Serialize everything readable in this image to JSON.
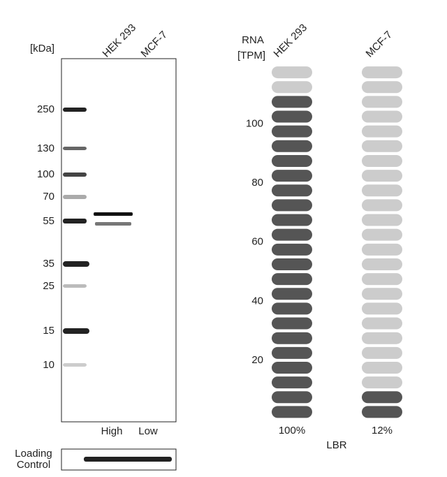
{
  "blot": {
    "unit_label": "[kDa]",
    "lanes": [
      "HEK 293",
      "MCF-7"
    ],
    "markers": [
      250,
      130,
      100,
      70,
      55,
      35,
      25,
      15,
      10
    ],
    "levels": [
      "High",
      "Low"
    ],
    "loading_control": [
      "Loading",
      "Control"
    ]
  },
  "rna": {
    "axis_label": [
      "RNA",
      "[TPM]"
    ],
    "cell_lines": [
      "HEK 293",
      "MCF-7"
    ],
    "ylim": [
      0,
      120
    ],
    "yticks": [
      20,
      40,
      60,
      80,
      100
    ],
    "pill_count": 24,
    "filled": [
      22,
      2
    ],
    "dark_color": "#555555",
    "light_color": "#cccccc",
    "percent": [
      "100%",
      "12%"
    ],
    "gene": "LBR"
  }
}
